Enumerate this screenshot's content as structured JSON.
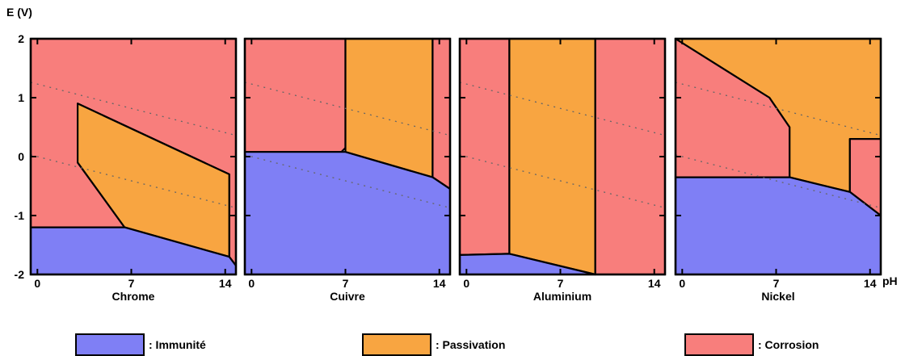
{
  "chart_data": {
    "type": "area",
    "y_axis_label": "E (V)",
    "x_axis_unit": "pH",
    "x_ticks": [
      0,
      7,
      14
    ],
    "y_ticks": [
      2,
      1,
      0,
      -1,
      -2
    ],
    "xlim": [
      -0.5,
      14.8
    ],
    "ylim": [
      -2,
      2
    ],
    "colors": {
      "immunite": "#7f7ff5",
      "passivation": "#f8a541",
      "corrosion": "#f87e7c"
    },
    "legend": [
      {
        "key": "immunite",
        "label": ": Immunité"
      },
      {
        "key": "passivation",
        "label": ": Passivation"
      },
      {
        "key": "corrosion",
        "label": ": Corrosion"
      }
    ],
    "water_lines": [
      {
        "name": "upper",
        "points": [
          [
            -0.5,
            1.26
          ],
          [
            14.8,
            0.36
          ]
        ]
      },
      {
        "name": "lower",
        "points": [
          [
            -0.5,
            0.03
          ],
          [
            14.8,
            -0.87
          ]
        ]
      }
    ],
    "panels": [
      {
        "name": "Chrome",
        "regions": [
          {
            "type": "corrosion",
            "points": [
              [
                -0.5,
                2
              ],
              [
                14.8,
                2
              ],
              [
                14.8,
                -1.85
              ],
              [
                14.3,
                -1.7
              ],
              [
                14.3,
                -0.3
              ],
              [
                3,
                0.9
              ],
              [
                3,
                -0.1
              ],
              [
                6.5,
                -1.2
              ],
              [
                -0.5,
                -1.2
              ]
            ]
          },
          {
            "type": "passivation",
            "points": [
              [
                3,
                0.9
              ],
              [
                14.3,
                -0.3
              ],
              [
                14.3,
                -1.7
              ],
              [
                6.5,
                -1.2
              ],
              [
                3,
                -0.1
              ]
            ]
          },
          {
            "type": "immunite",
            "points": [
              [
                -0.5,
                -1.2
              ],
              [
                6.5,
                -1.2
              ],
              [
                14.3,
                -1.7
              ],
              [
                14.8,
                -1.85
              ],
              [
                14.8,
                -2
              ],
              [
                -0.5,
                -2
              ]
            ]
          }
        ]
      },
      {
        "name": "Cuivre",
        "regions": [
          {
            "type": "corrosion",
            "points": [
              [
                -0.5,
                2
              ],
              [
                7,
                2
              ],
              [
                7,
                0.15
              ],
              [
                6.7,
                0.08
              ],
              [
                -0.5,
                0.08
              ]
            ]
          },
          {
            "type": "passivation",
            "points": [
              [
                7,
                2
              ],
              [
                13.5,
                2
              ],
              [
                13.5,
                -0.35
              ],
              [
                7,
                0.08
              ]
            ]
          },
          {
            "type": "corrosion",
            "points": [
              [
                13.5,
                2
              ],
              [
                14.8,
                2
              ],
              [
                14.8,
                -0.55
              ],
              [
                13.5,
                -0.35
              ]
            ]
          },
          {
            "type": "immunite",
            "points": [
              [
                -0.5,
                0.08
              ],
              [
                7,
                0.08
              ],
              [
                13.5,
                -0.35
              ],
              [
                14.8,
                -0.55
              ],
              [
                14.8,
                -2
              ],
              [
                -0.5,
                -2
              ]
            ]
          }
        ]
      },
      {
        "name": "Aluminium",
        "regions": [
          {
            "type": "corrosion",
            "points": [
              [
                -0.5,
                2
              ],
              [
                3.2,
                2
              ],
              [
                3.2,
                -1.65
              ],
              [
                -0.5,
                -1.67
              ]
            ]
          },
          {
            "type": "passivation",
            "points": [
              [
                3.2,
                2
              ],
              [
                9.6,
                2
              ],
              [
                9.6,
                -2
              ],
              [
                3.2,
                -1.65
              ]
            ]
          },
          {
            "type": "corrosion",
            "points": [
              [
                9.6,
                2
              ],
              [
                14.8,
                2
              ],
              [
                14.8,
                -2
              ],
              [
                9.6,
                -2
              ]
            ]
          },
          {
            "type": "immunite",
            "points": [
              [
                -0.5,
                -1.67
              ],
              [
                3.2,
                -1.65
              ],
              [
                9.6,
                -2
              ],
              [
                -0.5,
                -2
              ]
            ]
          }
        ]
      },
      {
        "name": "Nickel",
        "regions": [
          {
            "type": "passivation",
            "points": [
              [
                -0.5,
                2
              ],
              [
                14.8,
                2
              ],
              [
                14.8,
                0.3
              ],
              [
                12.5,
                0.3
              ],
              [
                12.5,
                -0.6
              ],
              [
                8,
                -0.35
              ],
              [
                8,
                0.5
              ],
              [
                6.5,
                1
              ],
              [
                -0.5,
                2
              ]
            ]
          },
          {
            "type": "corrosion",
            "points": [
              [
                -0.5,
                2
              ],
              [
                6.5,
                1
              ],
              [
                8,
                0.5
              ],
              [
                8,
                -0.35
              ],
              [
                -0.5,
                -0.35
              ]
            ]
          },
          {
            "type": "corrosion",
            "points": [
              [
                12.5,
                0.3
              ],
              [
                14.8,
                0.3
              ],
              [
                14.8,
                -1
              ],
              [
                12.5,
                -0.6
              ]
            ]
          },
          {
            "type": "immunite",
            "points": [
              [
                -0.5,
                -0.35
              ],
              [
                8,
                -0.35
              ],
              [
                12.5,
                -0.6
              ],
              [
                14.8,
                -1
              ],
              [
                14.8,
                -2
              ],
              [
                -0.5,
                -2
              ]
            ]
          }
        ]
      }
    ]
  }
}
